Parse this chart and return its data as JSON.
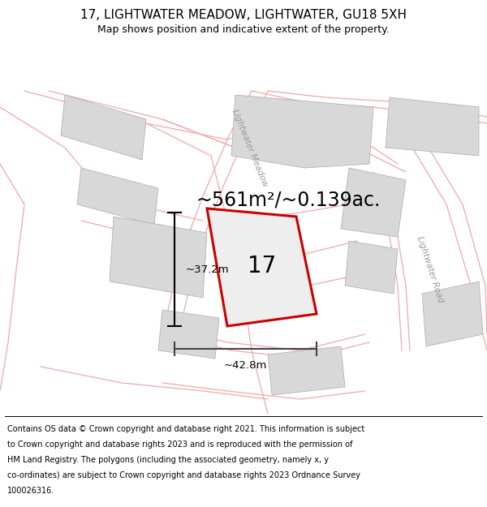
{
  "title": "17, LIGHTWATER MEADOW, LIGHTWATER, GU18 5XH",
  "subtitle": "Map shows position and indicative extent of the property.",
  "area_text": "~561m²/~0.139ac.",
  "dim_vertical": "~37.2m",
  "dim_horizontal": "~42.8m",
  "plot_number": "17",
  "map_bg": "#ffffff",
  "plot_fill": "#e8e8e8",
  "plot_edge": "#cc0000",
  "road_color": "#f0b0b0",
  "building_fill": "#d8d8d8",
  "building_edge": "#aaaaaa",
  "road_label_color": "#999999",
  "title_fontsize": 11,
  "subtitle_fontsize": 9,
  "area_fontsize": 17,
  "plot_label_fontsize": 20,
  "dim_fontsize": 9.5,
  "footer_fontsize": 7,
  "road1_label": "Lightwater Meadow",
  "road2_label": "Lightwater Road",
  "fig_width": 6.0,
  "fig_height": 6.25,
  "dpi": 100
}
